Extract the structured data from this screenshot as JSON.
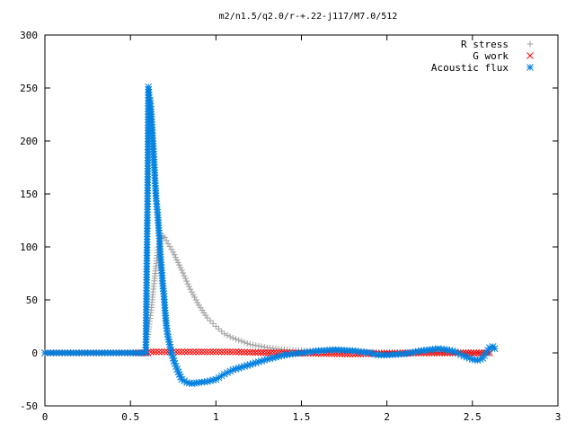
{
  "chart_data": {
    "type": "scatter",
    "title": "m2/n1.5/q2.0/r-+.22-j117/M7.0/512",
    "xlabel": "",
    "ylabel": "",
    "xlim": [
      0,
      3
    ],
    "ylim": [
      -50,
      300
    ],
    "xticks": [
      "0",
      "0.5",
      "1",
      "1.5",
      "2",
      "2.5",
      "3"
    ],
    "yticks": [
      "-50",
      "0",
      "50",
      "100",
      "150",
      "200",
      "250",
      "300"
    ],
    "grid": false,
    "legend": "top-right",
    "series": [
      {
        "name": "R stress",
        "marker": "plus-icon",
        "color": "#a0a0a0",
        "points": [
          [
            0,
            0
          ],
          [
            0.1,
            0
          ],
          [
            0.2,
            0
          ],
          [
            0.3,
            0
          ],
          [
            0.4,
            0
          ],
          [
            0.5,
            0
          ],
          [
            0.58,
            0
          ],
          [
            0.6,
            15
          ],
          [
            0.61,
            27
          ],
          [
            0.62,
            38
          ],
          [
            0.63,
            55
          ],
          [
            0.64,
            68
          ],
          [
            0.65,
            82
          ],
          [
            0.66,
            97
          ],
          [
            0.67,
            105
          ],
          [
            0.68,
            108
          ],
          [
            0.69,
            110
          ],
          [
            0.7,
            109
          ],
          [
            0.72,
            103
          ],
          [
            0.75,
            95
          ],
          [
            0.8,
            78
          ],
          [
            0.85,
            60
          ],
          [
            0.9,
            45
          ],
          [
            0.95,
            33
          ],
          [
            1.0,
            25
          ],
          [
            1.05,
            18
          ],
          [
            1.1,
            14
          ],
          [
            1.2,
            8
          ],
          [
            1.3,
            5
          ],
          [
            1.4,
            3
          ],
          [
            1.5,
            2
          ],
          [
            1.6,
            1.5
          ],
          [
            1.8,
            1
          ],
          [
            2.0,
            0.5
          ],
          [
            2.2,
            0.3
          ],
          [
            2.4,
            0.2
          ],
          [
            2.6,
            0
          ]
        ]
      },
      {
        "name": "G work",
        "marker": "cross-icon",
        "color": "#ff0000",
        "points": [
          [
            0,
            0
          ],
          [
            0.1,
            0
          ],
          [
            0.2,
            0
          ],
          [
            0.3,
            0
          ],
          [
            0.4,
            0
          ],
          [
            0.5,
            0
          ],
          [
            0.6,
            0
          ],
          [
            0.62,
            1
          ],
          [
            0.65,
            1
          ],
          [
            0.7,
            1
          ],
          [
            0.8,
            1
          ],
          [
            0.9,
            1
          ],
          [
            1.0,
            1
          ],
          [
            1.1,
            1
          ],
          [
            1.2,
            0.5
          ],
          [
            1.4,
            0
          ],
          [
            1.6,
            -0.5
          ],
          [
            1.8,
            -1
          ],
          [
            2.0,
            -0.5
          ],
          [
            2.2,
            0
          ],
          [
            2.4,
            0
          ],
          [
            2.6,
            0
          ]
        ]
      },
      {
        "name": "Acoustic flux",
        "marker": "star-icon",
        "color": "#0080e0",
        "points": [
          [
            0,
            0
          ],
          [
            0.1,
            0
          ],
          [
            0.2,
            0
          ],
          [
            0.3,
            0
          ],
          [
            0.4,
            0
          ],
          [
            0.5,
            0
          ],
          [
            0.59,
            0
          ],
          [
            0.6,
            143
          ],
          [
            0.605,
            251
          ],
          [
            0.61,
            241
          ],
          [
            0.615,
            238
          ],
          [
            0.62,
            230
          ],
          [
            0.625,
            218
          ],
          [
            0.63,
            205
          ],
          [
            0.635,
            190
          ],
          [
            0.64,
            175
          ],
          [
            0.645,
            160
          ],
          [
            0.65,
            146
          ],
          [
            0.66,
            130
          ],
          [
            0.665,
            118
          ],
          [
            0.67,
            108
          ],
          [
            0.675,
            93
          ],
          [
            0.68,
            83
          ],
          [
            0.685,
            73
          ],
          [
            0.69,
            63
          ],
          [
            0.695,
            56
          ],
          [
            0.7,
            45
          ],
          [
            0.705,
            35
          ],
          [
            0.71,
            26
          ],
          [
            0.72,
            15
          ],
          [
            0.73,
            8
          ],
          [
            0.74,
            0
          ],
          [
            0.76,
            -10
          ],
          [
            0.78,
            -18
          ],
          [
            0.8,
            -25
          ],
          [
            0.83,
            -28
          ],
          [
            0.86,
            -29
          ],
          [
            0.9,
            -28
          ],
          [
            0.95,
            -27
          ],
          [
            1.0,
            -25
          ],
          [
            1.05,
            -20
          ],
          [
            1.1,
            -16
          ],
          [
            1.2,
            -11
          ],
          [
            1.3,
            -6
          ],
          [
            1.4,
            -2
          ],
          [
            1.5,
            0
          ],
          [
            1.6,
            2
          ],
          [
            1.7,
            3
          ],
          [
            1.8,
            2
          ],
          [
            1.9,
            0
          ],
          [
            1.95,
            -2
          ],
          [
            2.0,
            -2
          ],
          [
            2.1,
            -1
          ],
          [
            2.2,
            2
          ],
          [
            2.3,
            4
          ],
          [
            2.35,
            3
          ],
          [
            2.4,
            1
          ],
          [
            2.45,
            -3
          ],
          [
            2.5,
            -6
          ],
          [
            2.53,
            -7
          ],
          [
            2.56,
            -5
          ],
          [
            2.58,
            0
          ],
          [
            2.6,
            5
          ],
          [
            2.62,
            6
          ],
          [
            2.63,
            4
          ]
        ]
      }
    ]
  }
}
